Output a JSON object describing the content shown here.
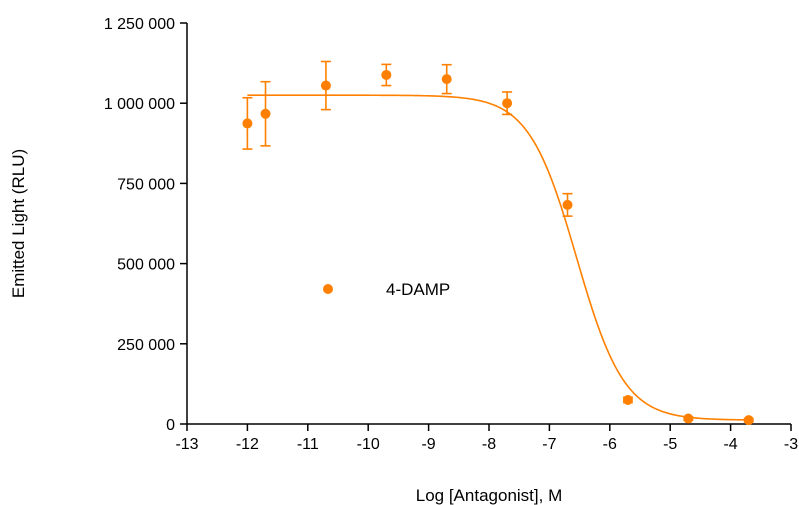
{
  "chart_data": {
    "type": "scatter",
    "title": "",
    "xlabel": "Log [Antagonist], M",
    "ylabel": "Emitted Light (RLU)",
    "xlim": [
      -13,
      -3
    ],
    "ylim": [
      0,
      1250000
    ],
    "x_ticks": [
      -13,
      -12,
      -11,
      -10,
      -9,
      -8,
      -7,
      -6,
      -5,
      -4,
      -3
    ],
    "x_tick_labels": [
      "-13",
      "-12",
      "-11",
      "-10",
      "-9",
      "-8",
      "-7",
      "-6",
      "-5",
      "-4",
      "-3"
    ],
    "y_ticks": [
      0,
      250000,
      500000,
      750000,
      1000000,
      1250000
    ],
    "y_tick_labels": [
      "0",
      "250 000",
      "500 000",
      "750 000",
      "1 000 000",
      "1 250 000"
    ],
    "grid": false,
    "legend_position": "center-left",
    "series": [
      {
        "name": "4-DAMP",
        "color": "#ff8000",
        "marker": "circle",
        "points": [
          {
            "x": -12.0,
            "y": 937000,
            "err": 80000
          },
          {
            "x": -11.7,
            "y": 967000,
            "err": 100000
          },
          {
            "x": -10.7,
            "y": 1055000,
            "err": 75000
          },
          {
            "x": -9.7,
            "y": 1088000,
            "err": 33000
          },
          {
            "x": -8.7,
            "y": 1075000,
            "err": 45000
          },
          {
            "x": -7.7,
            "y": 1000000,
            "err": 35000
          },
          {
            "x": -6.7,
            "y": 683000,
            "err": 35000
          },
          {
            "x": -5.7,
            "y": 75000,
            "err": 8000
          },
          {
            "x": -4.7,
            "y": 17000,
            "err": 5000
          },
          {
            "x": -3.7,
            "y": 12000,
            "err": 5000
          }
        ],
        "fit": {
          "model": "four-parameter logistic",
          "top": 1025000,
          "bottom": 12000,
          "logIC50": -6.55,
          "hill_slope": -1.1,
          "x_range": [
            -12,
            -3.7
          ]
        }
      }
    ]
  }
}
